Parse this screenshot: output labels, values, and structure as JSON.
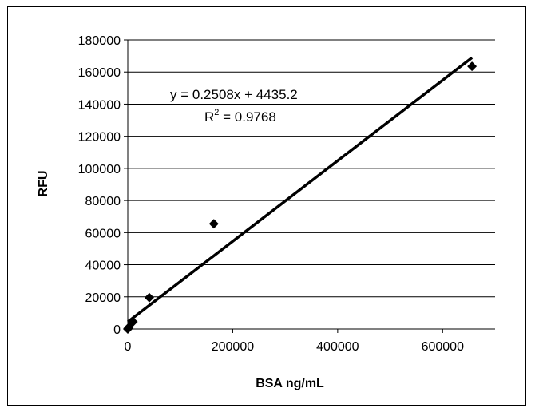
{
  "chart_data": {
    "type": "scatter",
    "title": "",
    "xlabel": "BSA ng/mL",
    "ylabel": "RFU",
    "xlim": [
      0,
      700000
    ],
    "ylim": [
      0,
      180000
    ],
    "xticks": [
      0,
      200000,
      400000,
      600000
    ],
    "yticks": [
      0,
      20000,
      40000,
      60000,
      80000,
      100000,
      120000,
      140000,
      160000,
      180000
    ],
    "xtick_labels": [
      "0",
      "200000",
      "400000",
      "600000"
    ],
    "ytick_labels": [
      "0",
      "20000",
      "40000",
      "60000",
      "80000",
      "100000",
      "120000",
      "140000",
      "160000",
      "180000"
    ],
    "grid": "horizontal",
    "legend": "none",
    "marker": "diamond",
    "marker_color": "#000000",
    "series": [
      {
        "points": [
          {
            "x": 0,
            "y": 0
          },
          {
            "x": 1000,
            "y": 500
          },
          {
            "x": 2500,
            "y": 1200
          },
          {
            "x": 10000,
            "y": 4500
          },
          {
            "x": 41000,
            "y": 19500
          },
          {
            "x": 164000,
            "y": 65500
          },
          {
            "x": 656000,
            "y": 163500
          }
        ]
      }
    ],
    "trendline": {
      "type": "linear",
      "slope": 0.2508,
      "intercept": 4435.2,
      "x_range": [
        0,
        656000
      ],
      "color": "#000000"
    },
    "annotations": {
      "equation": "y = 0.2508x + 4435.2",
      "r2_prefix": "R",
      "r2_sup": "2",
      "r2_suffix": " = 0.9768"
    }
  }
}
